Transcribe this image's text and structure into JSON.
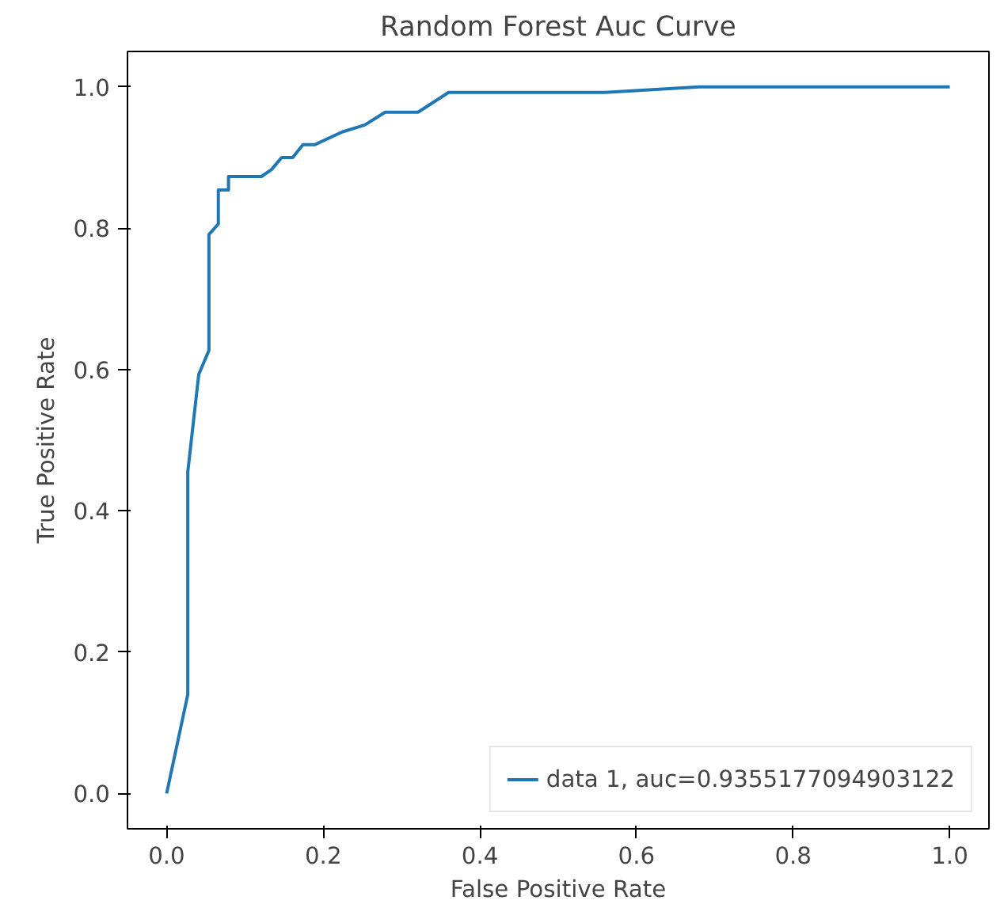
{
  "chart_data": {
    "type": "line",
    "title": "Random Forest Auc Curve",
    "xlabel": "False Positive Rate",
    "ylabel": "True Positive Rate",
    "x": [
      0,
      0.027,
      0.027,
      0.041,
      0.054,
      0.054,
      0.066,
      0.066,
      0.079,
      0.079,
      0.121,
      0.134,
      0.147,
      0.161,
      0.174,
      0.189,
      0.224,
      0.253,
      0.279,
      0.321,
      0.36,
      0.56,
      0.68,
      1.0
    ],
    "series": [
      {
        "name": "data 1, auc=0.9355177094903122",
        "color": "#1f77b4",
        "values": [
          0,
          0.14,
          0.455,
          0.593,
          0.627,
          0.791,
          0.806,
          0.854,
          0.854,
          0.873,
          0.873,
          0.883,
          0.9,
          0.9,
          0.918,
          0.918,
          0.936,
          0.946,
          0.964,
          0.964,
          0.992,
          0.992,
          1.0,
          1.0
        ]
      }
    ],
    "xlim": [
      -0.05,
      1.05
    ],
    "ylim": [
      -0.05,
      1.05
    ],
    "xticks": [
      {
        "value": 0,
        "label": "0.0"
      },
      0.2,
      0.4,
      0.6,
      0.8,
      {
        "value": 1,
        "label": "1.0"
      }
    ],
    "yticks": [
      {
        "value": 0,
        "label": "0.0"
      },
      0.2,
      0.4,
      0.6,
      0.8,
      {
        "value": 1,
        "label": "1.0"
      }
    ],
    "legend": "bottom right",
    "grid": false
  }
}
